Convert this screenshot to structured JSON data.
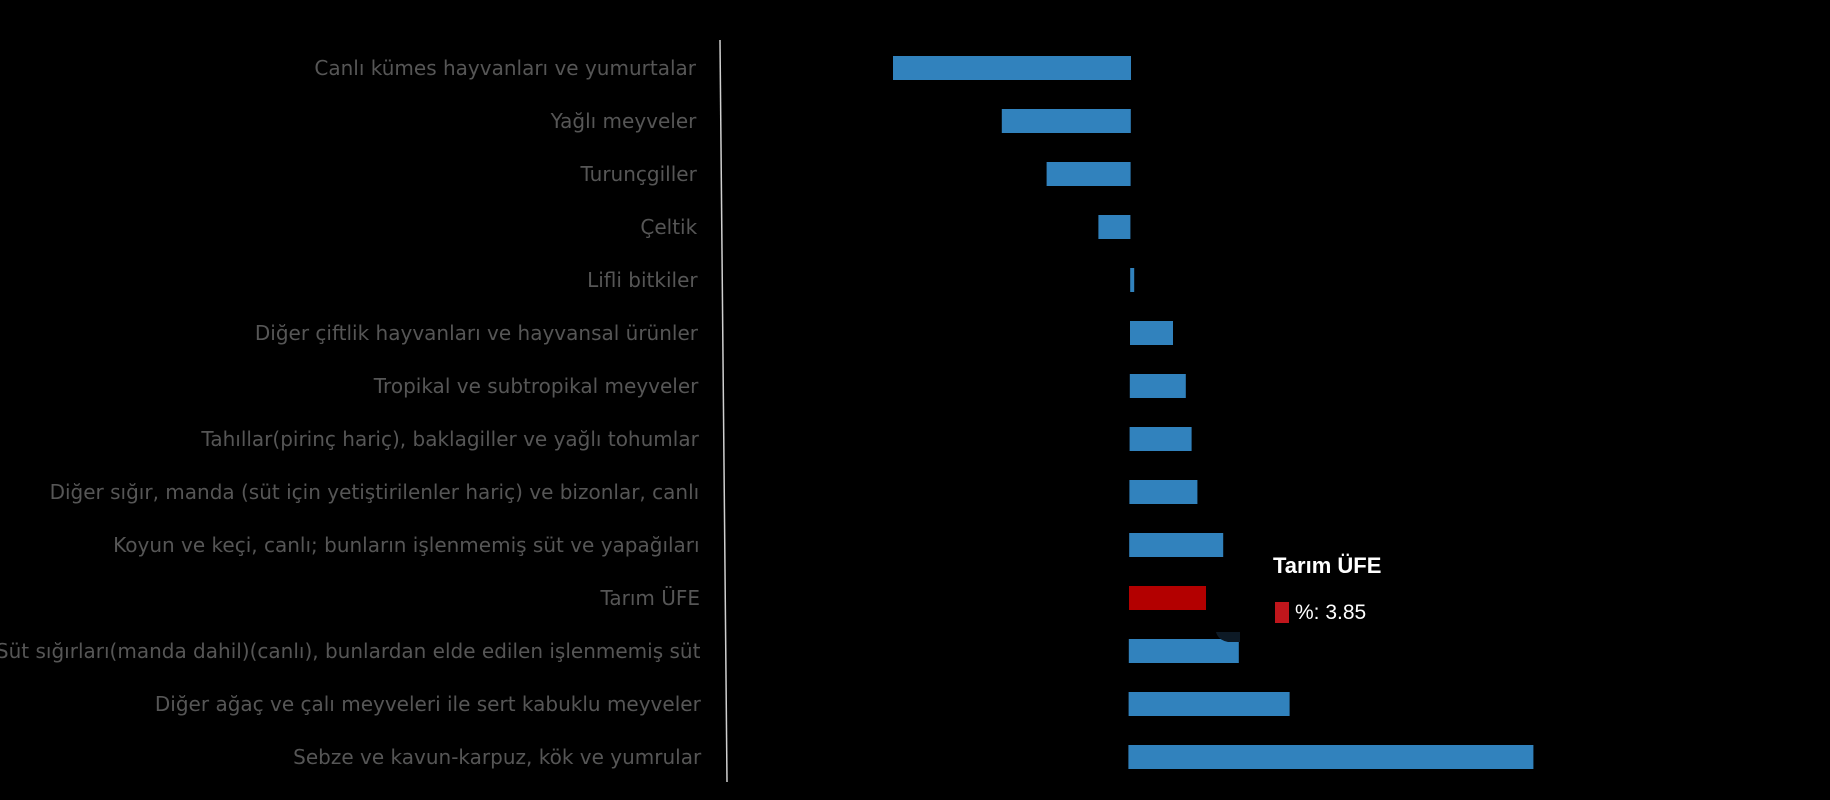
{
  "chart_data": {
    "type": "bar",
    "orientation": "horizontal",
    "title": "",
    "xlabel": "",
    "ylabel": "",
    "categories": [
      "Canlı kümes hayvanları ve yumurtalar",
      "Yağlı meyveler",
      "Turunçgiller",
      "Çeltik",
      "Lifli bitkiler",
      "Diğer çiftlik hayvanları ve hayvansal ürünler",
      "Tropikal ve subtropikal meyveler",
      "Tahıllar(pirinç hariç), baklagiller ve yağlı tohumlar",
      "Diğer sığır, manda (süt için yetiştirilenler hariç) ve bizonlar, canlı",
      "Koyun ve keçi, canlı; bunların işlenmemiş süt ve yapağıları",
      "Tarım ÜFE",
      "Süt sığırları(manda dahil)(canlı), bunlardan elde edilen işlenmemiş süt",
      "Diğer ağaç ve çalı meyveleri ile sert kabuklu meyveler",
      "Sebze ve kavun-karpuz, kök ve yumrular"
    ],
    "values": [
      -11.9,
      -6.45,
      -4.2,
      -1.6,
      0.2,
      2.15,
      2.8,
      3.1,
      3.4,
      4.7,
      3.85,
      5.5,
      8.05,
      20.25
    ],
    "highlight_index": 10,
    "colors": {
      "default": "#3182bd",
      "highlight": "#b30000",
      "label": "#565656",
      "background": "#000000"
    },
    "grid": false,
    "legend": "none",
    "tooltip": {
      "title": "Tarım ÜFE",
      "label": "%: 3.85",
      "swatch_color": "#c0161c"
    }
  }
}
